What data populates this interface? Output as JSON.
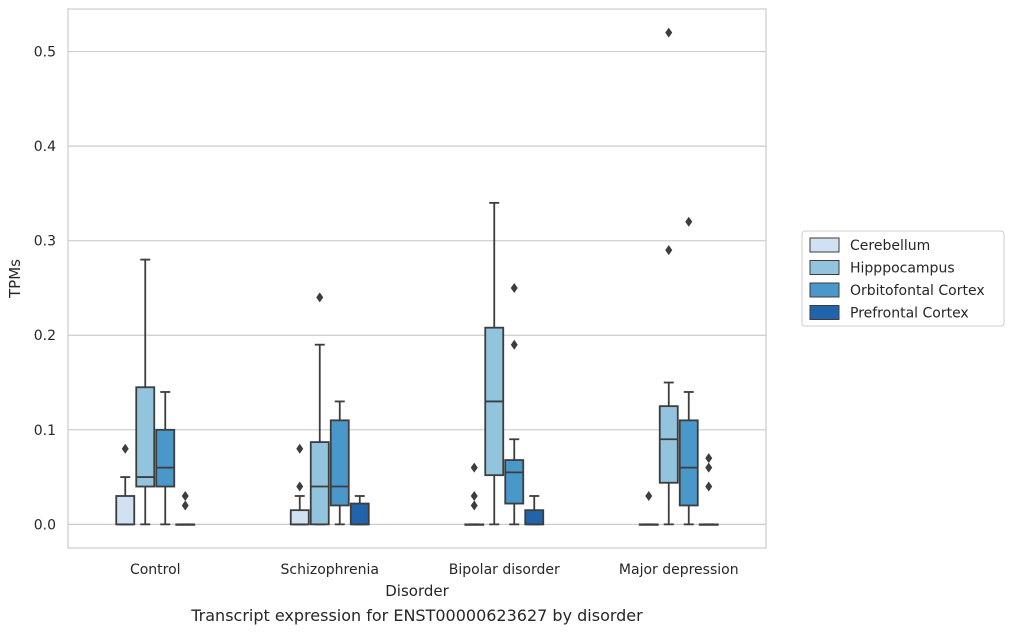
{
  "caption": "Transcript expression for ENST00000623627 by disorder",
  "chart_data": {
    "type": "box",
    "title": "",
    "xlabel": "Disorder",
    "ylabel": "TPMs",
    "ylim": [
      -0.025,
      0.545
    ],
    "yticks": [
      0.0,
      0.1,
      0.2,
      0.3,
      0.4,
      0.5
    ],
    "ytick_labels": [
      "0.0",
      "0.1",
      "0.2",
      "0.3",
      "0.4",
      "0.5"
    ],
    "grid": "horizontal",
    "legend_position": "right",
    "categories": [
      "Control",
      "Schizophrenia",
      "Bipolar disorder",
      "Major depression"
    ],
    "series": [
      {
        "name": "Cerebellum",
        "color": "#cfe1f2",
        "boxes": [
          {
            "whislo": 0.0,
            "q1": 0.0,
            "med": 0.0,
            "q3": 0.03,
            "whishi": 0.05,
            "fliers": [
              0.08
            ]
          },
          {
            "whislo": 0.0,
            "q1": 0.0,
            "med": 0.0,
            "q3": 0.015,
            "whishi": 0.03,
            "fliers": [
              0.04,
              0.08
            ]
          },
          {
            "whislo": 0.0,
            "q1": 0.0,
            "med": 0.0,
            "q3": 0.0,
            "whishi": 0.0,
            "fliers": [
              0.02,
              0.03,
              0.06
            ]
          },
          {
            "whislo": 0.0,
            "q1": 0.0,
            "med": 0.0,
            "q3": 0.0,
            "whishi": 0.0,
            "fliers": [
              0.03
            ]
          }
        ]
      },
      {
        "name": "Hipppocampus",
        "color": "#93c4de",
        "boxes": [
          {
            "whislo": 0.0,
            "q1": 0.04,
            "med": 0.05,
            "q3": 0.145,
            "whishi": 0.28,
            "fliers": []
          },
          {
            "whislo": 0.0,
            "q1": 0.0,
            "med": 0.04,
            "q3": 0.087,
            "whishi": 0.19,
            "fliers": [
              0.24
            ]
          },
          {
            "whislo": 0.0,
            "q1": 0.052,
            "med": 0.13,
            "q3": 0.208,
            "whishi": 0.34,
            "fliers": []
          },
          {
            "whislo": 0.0,
            "q1": 0.044,
            "med": 0.09,
            "q3": 0.125,
            "whishi": 0.15,
            "fliers": [
              0.29,
              0.52
            ]
          }
        ]
      },
      {
        "name": "Orbitofontal Cortex",
        "color": "#4a98c9",
        "boxes": [
          {
            "whislo": 0.0,
            "q1": 0.04,
            "med": 0.06,
            "q3": 0.1,
            "whishi": 0.14,
            "fliers": []
          },
          {
            "whislo": 0.0,
            "q1": 0.02,
            "med": 0.04,
            "q3": 0.11,
            "whishi": 0.13,
            "fliers": []
          },
          {
            "whislo": 0.0,
            "q1": 0.022,
            "med": 0.055,
            "q3": 0.068,
            "whishi": 0.09,
            "fliers": [
              0.19,
              0.25
            ]
          },
          {
            "whislo": 0.0,
            "q1": 0.02,
            "med": 0.06,
            "q3": 0.11,
            "whishi": 0.14,
            "fliers": [
              0.32
            ]
          }
        ]
      },
      {
        "name": "Prefrontal Cortex",
        "color": "#2164ab",
        "boxes": [
          {
            "whislo": 0.0,
            "q1": 0.0,
            "med": 0.0,
            "q3": 0.0,
            "whishi": 0.0,
            "fliers": [
              0.02,
              0.03
            ]
          },
          {
            "whislo": 0.0,
            "q1": 0.0,
            "med": 0.0,
            "q3": 0.022,
            "whishi": 0.03,
            "fliers": []
          },
          {
            "whislo": 0.0,
            "q1": 0.0,
            "med": 0.0,
            "q3": 0.015,
            "whishi": 0.03,
            "fliers": []
          },
          {
            "whislo": 0.0,
            "q1": 0.0,
            "med": 0.0,
            "q3": 0.0,
            "whishi": 0.0,
            "fliers": [
              0.04,
              0.06,
              0.07
            ]
          }
        ]
      }
    ]
  }
}
